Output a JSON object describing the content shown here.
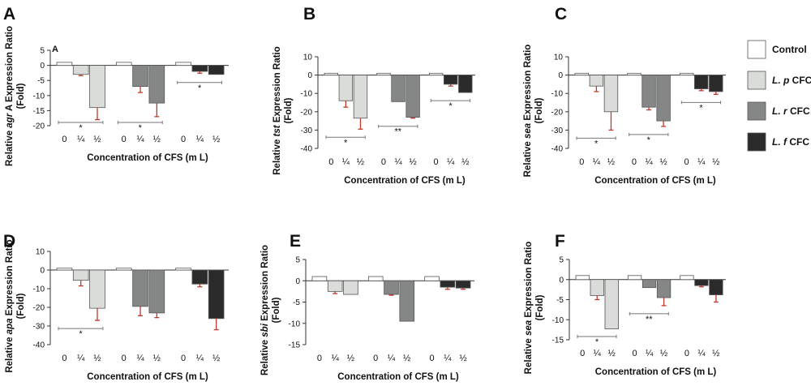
{
  "colors": {
    "control": "#ffffff",
    "lp": "#d9dcd9",
    "lr": "#858786",
    "lf": "#2b2b2b",
    "error": "#c0392b",
    "axis": "#333333"
  },
  "legend": [
    {
      "key": "control",
      "italic": "",
      "text": "Control"
    },
    {
      "key": "lp",
      "italic": "L. p",
      "text": " CFC"
    },
    {
      "key": "lr",
      "italic": "L. r",
      "text": " CFC"
    },
    {
      "key": "lf",
      "italic": "L. f",
      "text": " CFC"
    }
  ],
  "chart_data": [
    {
      "panel": "A",
      "type": "bar",
      "corner_label": "A",
      "ylabel_pre": "Relative ",
      "ylabel_gene": "agr",
      "ylabel_post": " A Expression Ratio",
      "ylabel2": "(Fold)",
      "xlabel": "Concentration of CFS (m L)",
      "categories": [
        "0",
        "¼",
        "½"
      ],
      "ylim": [
        -20,
        5
      ],
      "yticks": [
        5,
        0,
        -5,
        -10,
        -15,
        -20
      ],
      "series": [
        {
          "key": "lp",
          "values": [
            1,
            -3,
            -14
          ],
          "errors": [
            0,
            0.4,
            4
          ]
        },
        {
          "key": "lr",
          "values": [
            1,
            -7,
            -12.5
          ],
          "errors": [
            0,
            2,
            4.5
          ]
        },
        {
          "key": "lf",
          "values": [
            1,
            -2,
            -3
          ],
          "errors": [
            0,
            0.6,
            0
          ]
        }
      ],
      "significance": [
        "*",
        "*",
        "*"
      ]
    },
    {
      "panel": "B",
      "type": "bar",
      "ylabel_pre": "Relative ",
      "ylabel_gene": "tst",
      "ylabel_post": " Expression Ratio",
      "ylabel2": "(Fold)",
      "xlabel": "Concentration of CFS (m L)",
      "categories": [
        "0",
        "¼",
        "½"
      ],
      "ylim": [
        -40,
        10
      ],
      "yticks": [
        10,
        0,
        -10,
        -20,
        -30,
        -40
      ],
      "series": [
        {
          "key": "lp",
          "values": [
            1,
            -14,
            -23.5
          ],
          "errors": [
            0,
            3.5,
            6
          ]
        },
        {
          "key": "lr",
          "values": [
            1,
            -14.5,
            -23
          ],
          "errors": [
            0,
            0,
            0.5
          ]
        },
        {
          "key": "lf",
          "values": [
            1,
            -5,
            -9.5
          ],
          "errors": [
            0,
            1,
            0
          ]
        }
      ],
      "significance": [
        "*",
        "**",
        "*"
      ]
    },
    {
      "panel": "C",
      "type": "bar",
      "ylabel_pre": "Relative ",
      "ylabel_gene": "sea",
      "ylabel_post": " Expression Ratio",
      "ylabel2": "(Fold)",
      "xlabel": "Concentration of CFS (m L)",
      "categories": [
        "0",
        "¼",
        "½"
      ],
      "ylim": [
        -40,
        10
      ],
      "yticks": [
        10,
        0,
        -10,
        -20,
        -30,
        -40
      ],
      "series": [
        {
          "key": "lp",
          "values": [
            1,
            -6,
            -20
          ],
          "errors": [
            0,
            3,
            10
          ]
        },
        {
          "key": "lr",
          "values": [
            1,
            -17.5,
            -25
          ],
          "errors": [
            0,
            1.5,
            3
          ]
        },
        {
          "key": "lf",
          "values": [
            1,
            -7.5,
            -9
          ],
          "errors": [
            0,
            1,
            1.5
          ]
        }
      ],
      "significance": [
        "*",
        "*",
        "*"
      ]
    },
    {
      "panel": "D",
      "type": "bar",
      "ylabel_pre": "Relative ",
      "ylabel_gene": "apa",
      "ylabel_post": " Expression Ratio",
      "ylabel2": "(Fold)",
      "xlabel": "Concentration of CFS (m L)",
      "categories": [
        "0",
        "¼",
        "½"
      ],
      "ylim": [
        -40,
        10
      ],
      "yticks": [
        10,
        0,
        -10,
        -20,
        -30,
        -40
      ],
      "series": [
        {
          "key": "lp",
          "values": [
            1,
            -5.5,
            -20.5
          ],
          "errors": [
            0,
            3,
            6.5
          ]
        },
        {
          "key": "lr",
          "values": [
            1,
            -19.5,
            -23
          ],
          "errors": [
            0,
            5,
            2.5
          ]
        },
        {
          "key": "lf",
          "values": [
            1,
            -7.5,
            -26
          ],
          "errors": [
            0,
            1.5,
            6
          ]
        }
      ],
      "significance": [
        "*",
        "",
        ""
      ]
    },
    {
      "panel": "E",
      "type": "bar",
      "ylabel_pre": "Relative ",
      "ylabel_gene": "sbi",
      "ylabel_post": " Expression Ratio",
      "ylabel2": "(Fold)",
      "xlabel": "Concentration of CFS (m L)",
      "categories": [
        "0",
        "¼",
        "½"
      ],
      "ylim": [
        -15,
        5
      ],
      "yticks": [
        5,
        0,
        -5,
        -10,
        -15
      ],
      "series": [
        {
          "key": "lp",
          "values": [
            1,
            -2.5,
            -3.2
          ],
          "errors": [
            0,
            0.5,
            0
          ]
        },
        {
          "key": "lr",
          "values": [
            1,
            -3.2,
            -9.5
          ],
          "errors": [
            0,
            0.2,
            0
          ]
        },
        {
          "key": "lf",
          "values": [
            1,
            -1.5,
            -1.7
          ],
          "errors": [
            0,
            0.5,
            0.3
          ]
        }
      ],
      "significance": [
        "",
        "",
        ""
      ]
    },
    {
      "panel": "F",
      "type": "bar",
      "ylabel_pre": "Relative ",
      "ylabel_gene": "sea",
      "ylabel_post": " Expression Ratio",
      "ylabel2": "(Fold)",
      "xlabel": "Concentration of CFS (m L)",
      "categories": [
        "0",
        "¼",
        "½"
      ],
      "ylim": [
        -15,
        5
      ],
      "yticks": [
        5,
        0,
        -5,
        -10,
        -15
      ],
      "series": [
        {
          "key": "lp",
          "values": [
            1,
            -4,
            -12.3
          ],
          "errors": [
            0,
            1,
            0
          ]
        },
        {
          "key": "lr",
          "values": [
            1,
            -2,
            -4.5
          ],
          "errors": [
            0,
            0,
            2
          ]
        },
        {
          "key": "lf",
          "values": [
            1,
            -1.5,
            -3.8
          ],
          "errors": [
            0,
            0.3,
            1.8
          ]
        }
      ],
      "significance": [
        "*",
        "**",
        ""
      ]
    }
  ]
}
